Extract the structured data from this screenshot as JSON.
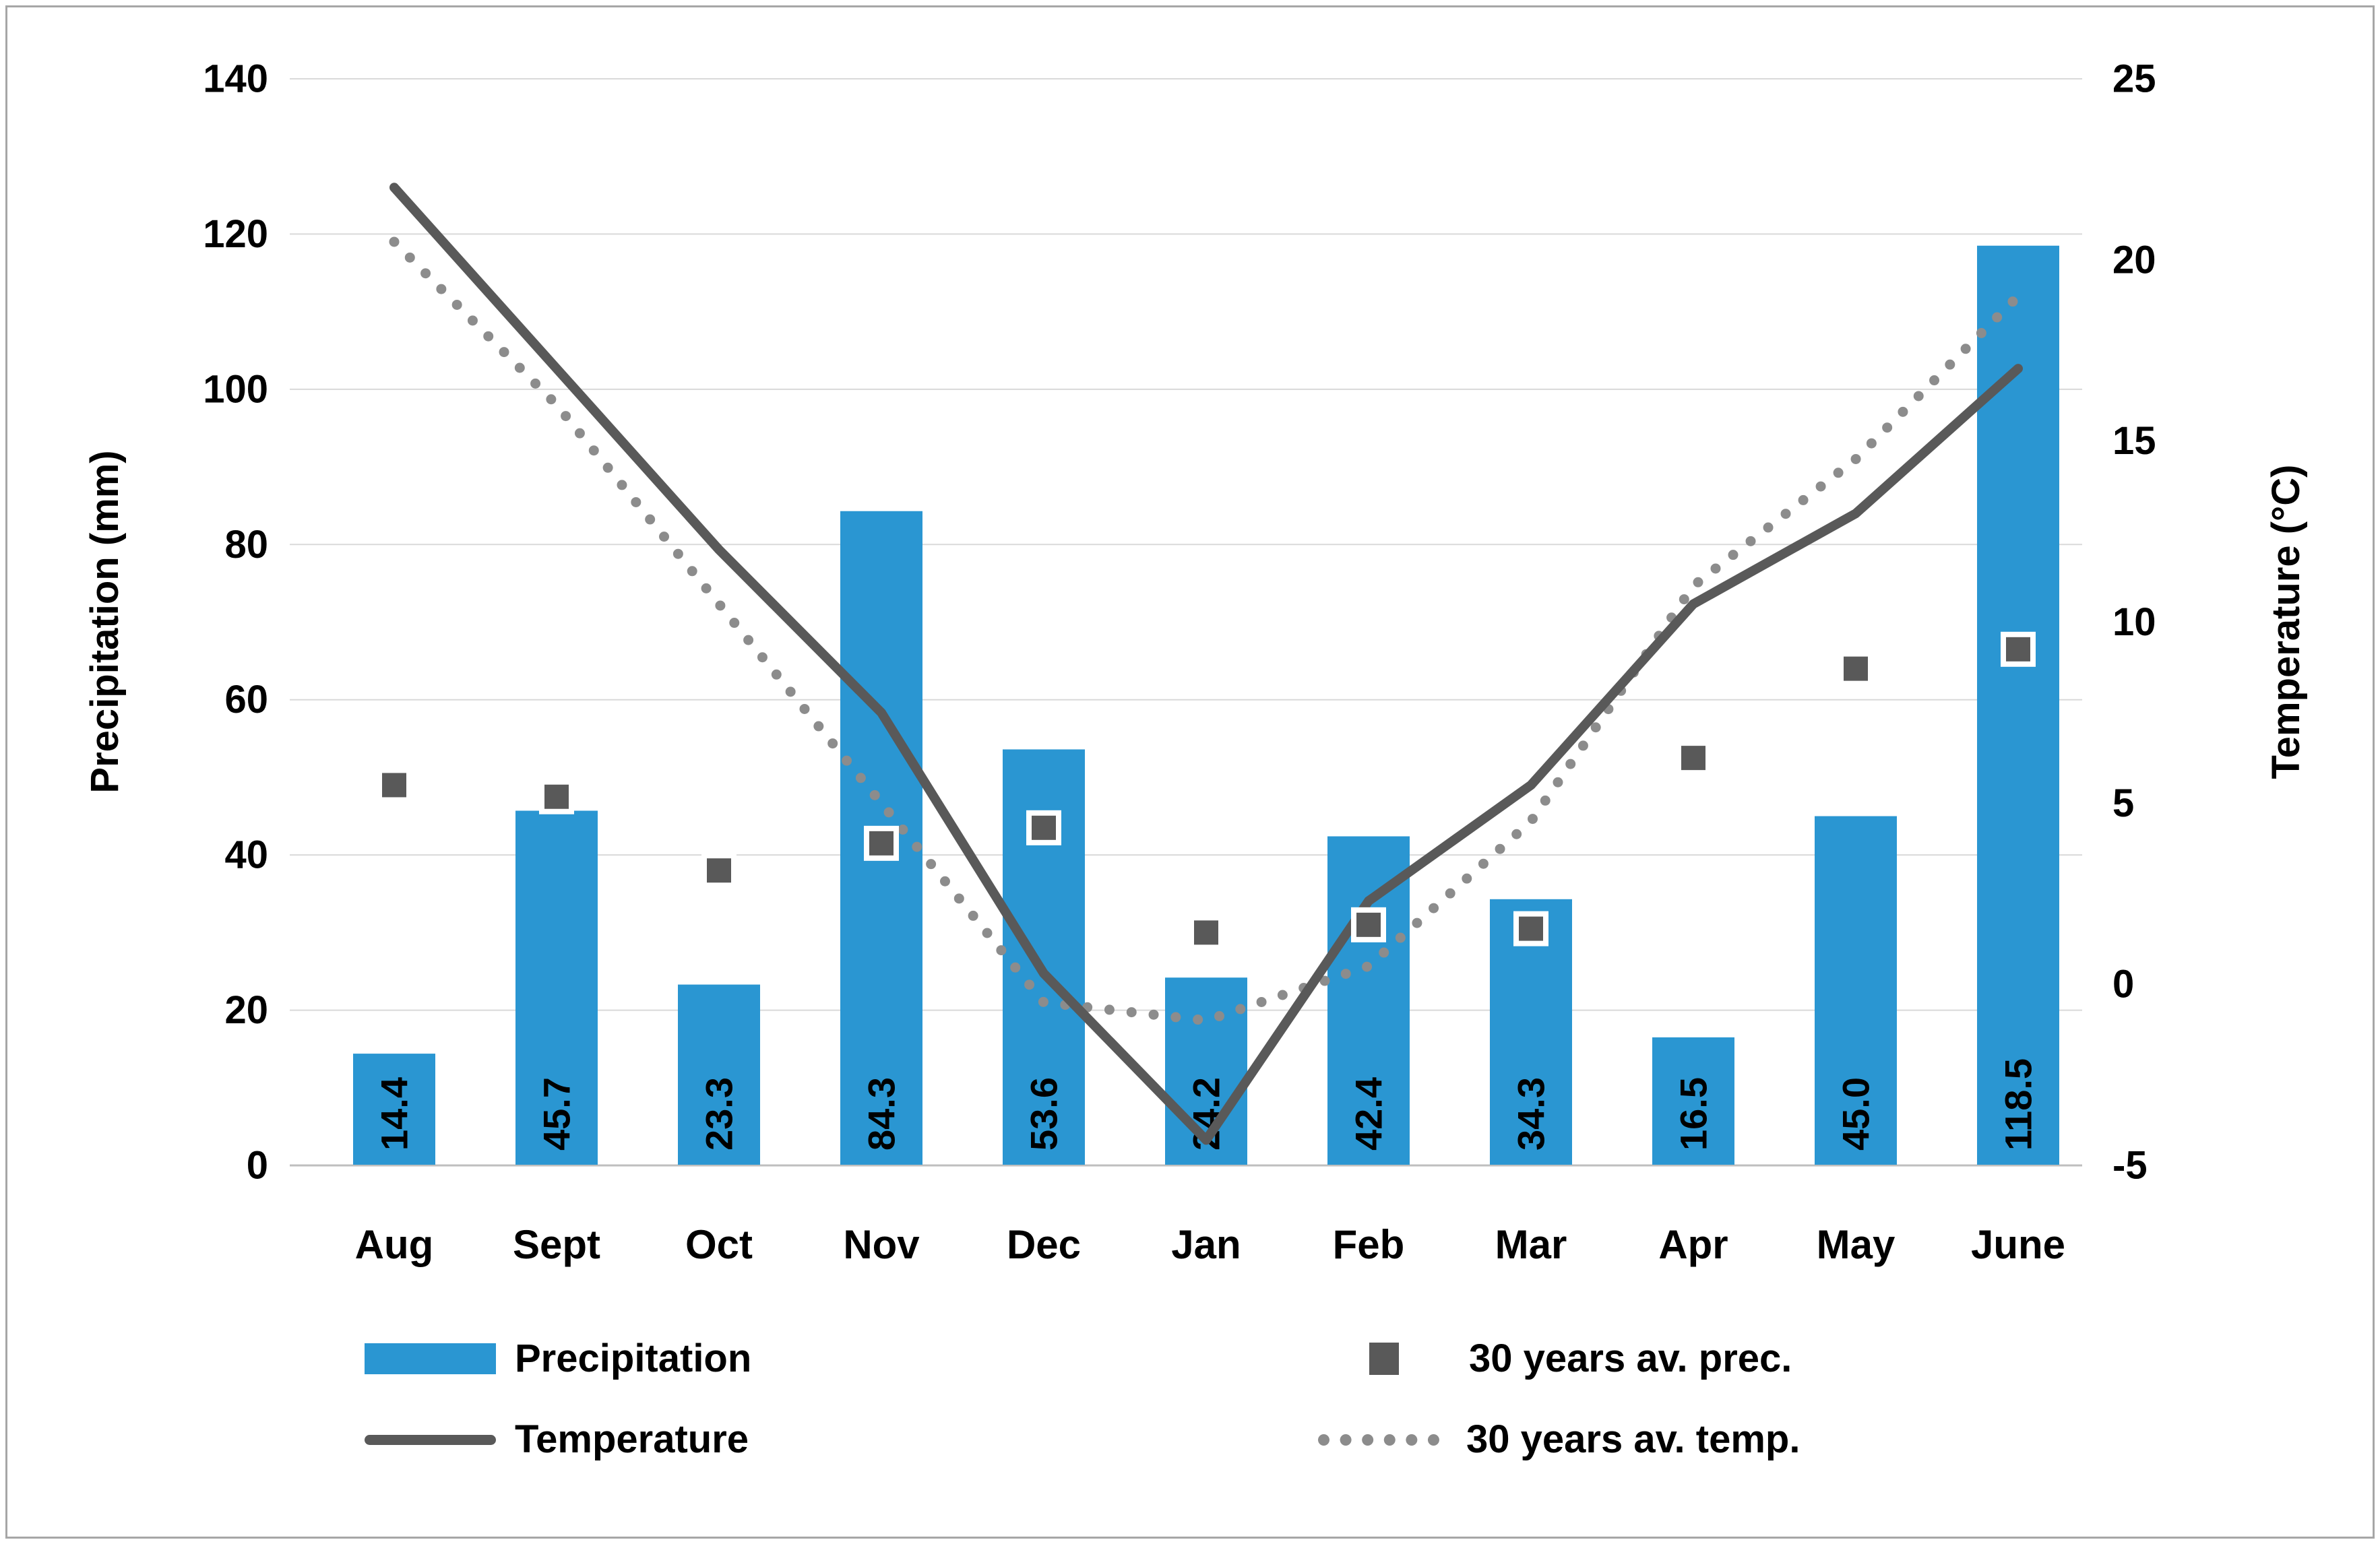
{
  "chart_data": {
    "type": "combo",
    "title": "",
    "categories": [
      "Aug",
      "Sept",
      "Oct",
      "Nov",
      "Dec",
      "Jan",
      "Feb",
      "Mar",
      "Apr",
      "May",
      "June"
    ],
    "series": [
      {
        "name": "Precipitation",
        "type": "bar",
        "axis": "left",
        "unit": "mm",
        "color": "#2A96D2",
        "values": [
          14.4,
          45.7,
          23.3,
          84.3,
          53.6,
          24.2,
          42.4,
          34.3,
          16.5,
          45.0,
          118.5
        ],
        "labels": [
          "14.4",
          "45.7",
          "23.3",
          "84.3",
          "53.6",
          "24.2",
          "42.4",
          "34.3",
          "16.5",
          "45.0",
          "118.5"
        ]
      },
      {
        "name": "Temperature",
        "type": "line",
        "axis": "right",
        "unit": "°C",
        "color": "#595959",
        "values": [
          22,
          17,
          12,
          7.5,
          0.3,
          -4.3,
          2.3,
          5.5,
          10.5,
          13,
          17
        ]
      },
      {
        "name": "30 years av. prec.",
        "type": "scatter-square",
        "axis": "left",
        "unit": "mm",
        "color": "#595959",
        "marker_outline": "#ffffff",
        "values": [
          49,
          47.5,
          38,
          41.5,
          43.5,
          30,
          31,
          30.5,
          52.5,
          64,
          66.5
        ]
      },
      {
        "name": "30 years av. temp.",
        "type": "dotted-line",
        "axis": "right",
        "unit": "°C",
        "color": "#8C8C8C",
        "values": [
          20.5,
          16,
          10.5,
          5,
          -0.5,
          -1,
          0.5,
          4.5,
          11,
          14.5,
          19
        ]
      }
    ],
    "left_axis": {
      "title": "Precipitation (mm)",
      "min": 0,
      "max": 140,
      "step": 20,
      "ticks": [
        140,
        120,
        100,
        80,
        60,
        40,
        20,
        0
      ]
    },
    "right_axis": {
      "title": "Temperature (°C)",
      "min": -5,
      "max": 25,
      "step": 5,
      "ticks": [
        25,
        20,
        15,
        10,
        5,
        0,
        "-5"
      ]
    },
    "grid": true,
    "legend_position": "bottom"
  },
  "legend": {
    "items": [
      {
        "label": "Precipitation",
        "swatch": "bar"
      },
      {
        "label": "30 years av. prec.",
        "swatch": "square"
      },
      {
        "label": "Temperature",
        "swatch": "line"
      },
      {
        "label": "30 years av. temp.",
        "swatch": "dots"
      }
    ]
  },
  "colors": {
    "bar_blue": "#2A96D2",
    "temp_line": "#595959",
    "avg_prec_marker": "#595959",
    "avg_temp_dots": "#8C8C8C",
    "gridline": "#D9D9D9",
    "axis_line": "#BFBFBF",
    "text": "#000000",
    "frame_border": "#A6A6A6"
  }
}
